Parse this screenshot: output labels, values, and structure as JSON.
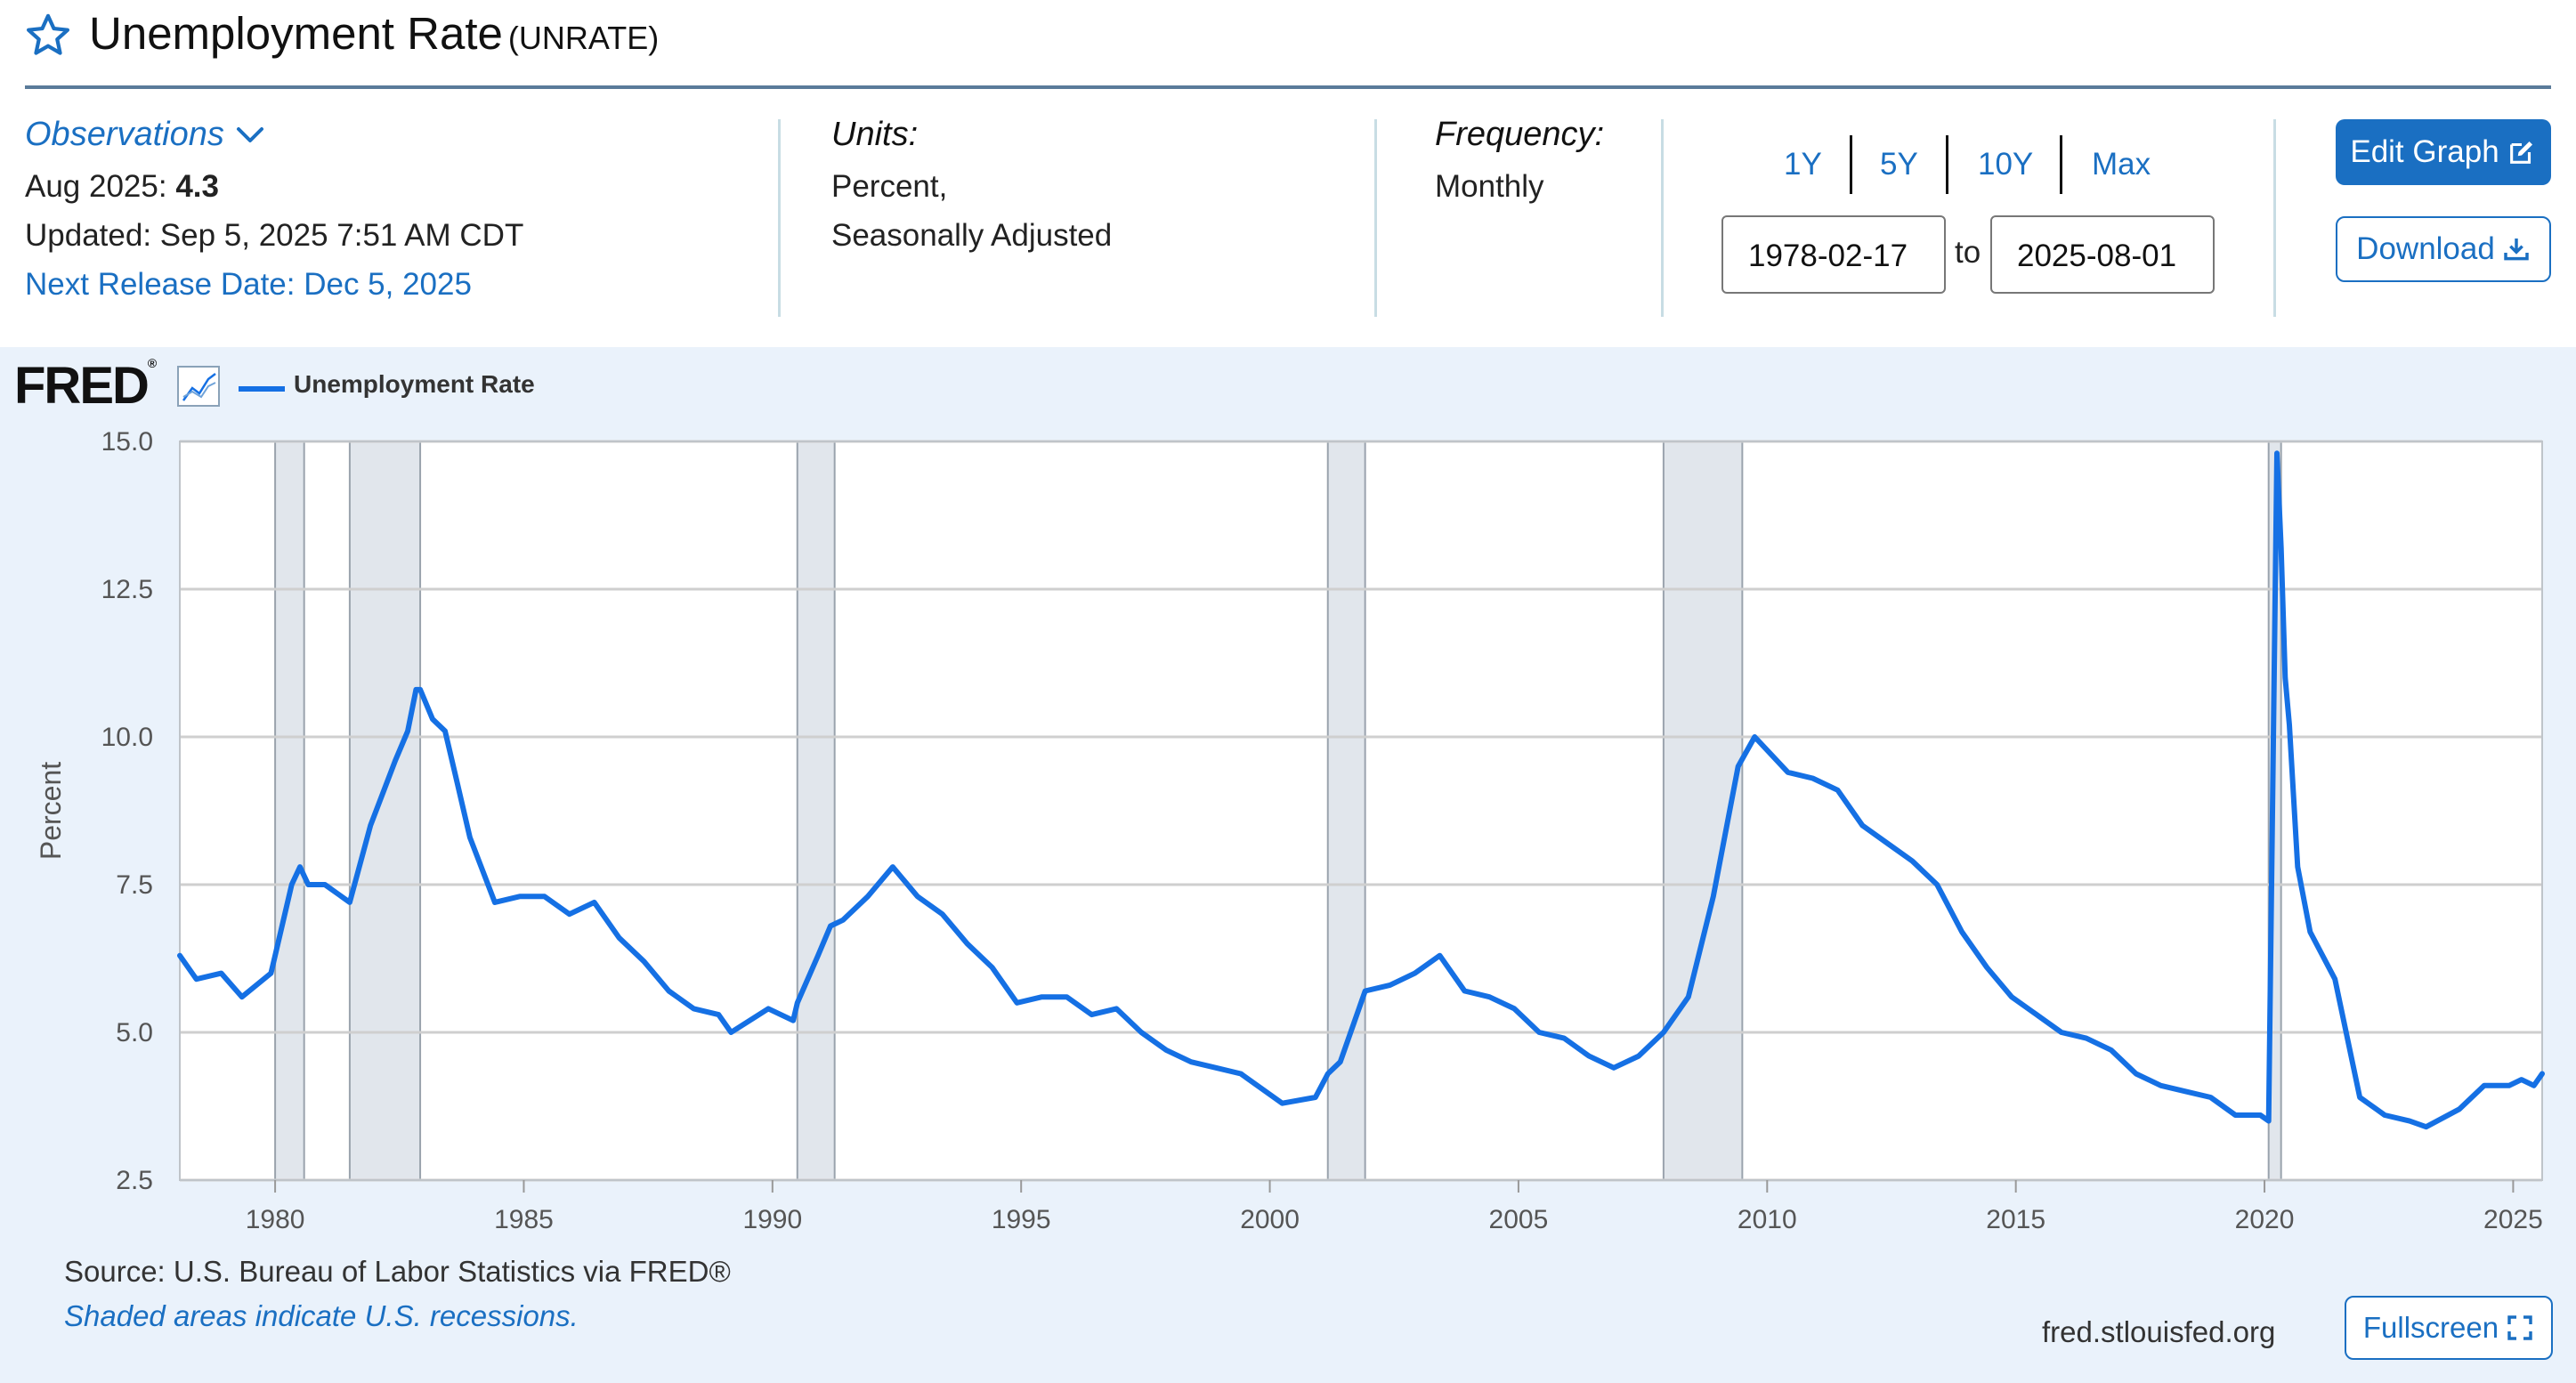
{
  "header": {
    "title": "Unemployment Rate",
    "series_id": "(UNRATE)",
    "star_icon": "star-outline-icon"
  },
  "observations": {
    "toggle_label": "Observations",
    "period_label": "Aug 2025:",
    "period_value": "4.3",
    "updated": "Updated: Sep 5, 2025 7:51 AM CDT",
    "next_release": "Next Release Date: Dec 5, 2025"
  },
  "units": {
    "label": "Units:",
    "line1": "Percent,",
    "line2": "Seasonally Adjusted"
  },
  "frequency": {
    "label": "Frequency:",
    "value": "Monthly"
  },
  "date_range": {
    "buttons": [
      "1Y",
      "5Y",
      "10Y",
      "Max"
    ],
    "start": "1978-02-17",
    "to_label": "to",
    "end": "2025-08-01"
  },
  "actions": {
    "edit_graph": "Edit Graph",
    "download": "Download",
    "fullscreen": "Fullscreen"
  },
  "branding": {
    "logo_text": "FRED",
    "logo_reg": "®",
    "site": "fred.stlouisfed.org"
  },
  "footer": {
    "source": "Source: U.S. Bureau of Labor Statistics via FRED®",
    "shaded_note": "Shaded areas indicate U.S. recessions."
  },
  "colors": {
    "accent": "#1a6fc2",
    "series_line": "#1570e4",
    "panel_bg": "#eaf2fb",
    "recession_shade": "#e1e6ec",
    "grid": "#cfcfcf"
  },
  "chart_data": {
    "type": "line",
    "title": "",
    "xlabel": "",
    "ylabel": "Percent",
    "ylim": [
      2.5,
      15.0
    ],
    "xlim": [
      "1978-02",
      "2025-08"
    ],
    "y_ticks": [
      "2.5",
      "5.0",
      "7.5",
      "10.0",
      "12.5",
      "15.0"
    ],
    "x_ticks": [
      "1980",
      "1985",
      "1990",
      "1995",
      "2000",
      "2005",
      "2010",
      "2015",
      "2020",
      "2025"
    ],
    "grid": true,
    "legend": "top-left",
    "recessions": [
      [
        "1980-01",
        "1980-07"
      ],
      [
        "1981-07",
        "1982-11"
      ],
      [
        "1990-07",
        "1991-03"
      ],
      [
        "2001-03",
        "2001-11"
      ],
      [
        "2007-12",
        "2009-06"
      ],
      [
        "2020-02",
        "2020-04"
      ]
    ],
    "series": [
      {
        "name": "Unemployment Rate",
        "points": [
          [
            "1978-02",
            6.3
          ],
          [
            "1978-06",
            5.9
          ],
          [
            "1978-12",
            6.0
          ],
          [
            "1979-05",
            5.6
          ],
          [
            "1979-12",
            6.0
          ],
          [
            "1980-01",
            6.3
          ],
          [
            "1980-05",
            7.5
          ],
          [
            "1980-07",
            7.8
          ],
          [
            "1980-09",
            7.5
          ],
          [
            "1981-01",
            7.5
          ],
          [
            "1981-07",
            7.2
          ],
          [
            "1981-12",
            8.5
          ],
          [
            "1982-06",
            9.6
          ],
          [
            "1982-09",
            10.1
          ],
          [
            "1982-11",
            10.8
          ],
          [
            "1982-12",
            10.8
          ],
          [
            "1983-03",
            10.3
          ],
          [
            "1983-06",
            10.1
          ],
          [
            "1983-09",
            9.2
          ],
          [
            "1983-12",
            8.3
          ],
          [
            "1984-06",
            7.2
          ],
          [
            "1984-12",
            7.3
          ],
          [
            "1985-06",
            7.3
          ],
          [
            "1985-12",
            7.0
          ],
          [
            "1986-06",
            7.2
          ],
          [
            "1986-12",
            6.6
          ],
          [
            "1987-06",
            6.2
          ],
          [
            "1987-12",
            5.7
          ],
          [
            "1988-06",
            5.4
          ],
          [
            "1988-12",
            5.3
          ],
          [
            "1989-03",
            5.0
          ],
          [
            "1989-12",
            5.4
          ],
          [
            "1990-06",
            5.2
          ],
          [
            "1990-07",
            5.5
          ],
          [
            "1990-12",
            6.3
          ],
          [
            "1991-03",
            6.8
          ],
          [
            "1991-06",
            6.9
          ],
          [
            "1991-12",
            7.3
          ],
          [
            "1992-06",
            7.8
          ],
          [
            "1992-12",
            7.3
          ],
          [
            "1993-06",
            7.0
          ],
          [
            "1993-12",
            6.5
          ],
          [
            "1994-06",
            6.1
          ],
          [
            "1994-12",
            5.5
          ],
          [
            "1995-06",
            5.6
          ],
          [
            "1995-12",
            5.6
          ],
          [
            "1996-06",
            5.3
          ],
          [
            "1996-12",
            5.4
          ],
          [
            "1997-06",
            5.0
          ],
          [
            "1997-12",
            4.7
          ],
          [
            "1998-06",
            4.5
          ],
          [
            "1998-12",
            4.4
          ],
          [
            "1999-06",
            4.3
          ],
          [
            "1999-12",
            4.0
          ],
          [
            "2000-04",
            3.8
          ],
          [
            "2000-12",
            3.9
          ],
          [
            "2001-03",
            4.3
          ],
          [
            "2001-06",
            4.5
          ],
          [
            "2001-12",
            5.7
          ],
          [
            "2002-06",
            5.8
          ],
          [
            "2002-12",
            6.0
          ],
          [
            "2003-06",
            6.3
          ],
          [
            "2003-12",
            5.7
          ],
          [
            "2004-06",
            5.6
          ],
          [
            "2004-12",
            5.4
          ],
          [
            "2005-06",
            5.0
          ],
          [
            "2005-12",
            4.9
          ],
          [
            "2006-06",
            4.6
          ],
          [
            "2006-12",
            4.4
          ],
          [
            "2007-06",
            4.6
          ],
          [
            "2007-12",
            5.0
          ],
          [
            "2008-06",
            5.6
          ],
          [
            "2008-12",
            7.3
          ],
          [
            "2009-06",
            9.5
          ],
          [
            "2009-10",
            10.0
          ],
          [
            "2010-06",
            9.4
          ],
          [
            "2010-12",
            9.3
          ],
          [
            "2011-06",
            9.1
          ],
          [
            "2011-12",
            8.5
          ],
          [
            "2012-06",
            8.2
          ],
          [
            "2012-12",
            7.9
          ],
          [
            "2013-06",
            7.5
          ],
          [
            "2013-12",
            6.7
          ],
          [
            "2014-06",
            6.1
          ],
          [
            "2014-12",
            5.6
          ],
          [
            "2015-06",
            5.3
          ],
          [
            "2015-12",
            5.0
          ],
          [
            "2016-06",
            4.9
          ],
          [
            "2016-12",
            4.7
          ],
          [
            "2017-06",
            4.3
          ],
          [
            "2017-12",
            4.1
          ],
          [
            "2018-06",
            4.0
          ],
          [
            "2018-12",
            3.9
          ],
          [
            "2019-06",
            3.6
          ],
          [
            "2019-12",
            3.6
          ],
          [
            "2020-02",
            3.5
          ],
          [
            "2020-04",
            14.8
          ],
          [
            "2020-05",
            13.2
          ],
          [
            "2020-06",
            11.0
          ],
          [
            "2020-07",
            10.2
          ],
          [
            "2020-09",
            7.8
          ],
          [
            "2020-12",
            6.7
          ],
          [
            "2021-06",
            5.9
          ],
          [
            "2021-12",
            3.9
          ],
          [
            "2022-06",
            3.6
          ],
          [
            "2022-12",
            3.5
          ],
          [
            "2023-04",
            3.4
          ],
          [
            "2023-12",
            3.7
          ],
          [
            "2024-06",
            4.1
          ],
          [
            "2024-12",
            4.1
          ],
          [
            "2025-03",
            4.2
          ],
          [
            "2025-06",
            4.1
          ],
          [
            "2025-08",
            4.3
          ]
        ]
      }
    ]
  }
}
